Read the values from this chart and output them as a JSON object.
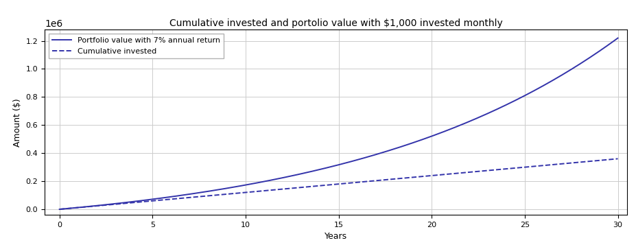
{
  "title": "Cumulative invested and portolio value with $1,000 invested monthly",
  "xlabel": "Years",
  "ylabel": "Amount ($)",
  "monthly_investment": 1000,
  "annual_return": 0.07,
  "years": 30,
  "line_color": "#3333aa",
  "portfolio_label": "Portfolio value with 7% annual return",
  "cumulative_label": "Cumulative invested",
  "xlim": [
    -0.8,
    30.5
  ],
  "ylim": [
    -40000.0,
    1280000.0
  ],
  "yticks": [
    0.0,
    0.2,
    0.4,
    0.6,
    0.8,
    1.0,
    1.2
  ],
  "xticks": [
    0,
    5,
    10,
    15,
    20,
    25,
    30
  ],
  "title_fontsize": 10,
  "label_fontsize": 9,
  "tick_fontsize": 8,
  "legend_fontsize": 8,
  "linewidth": 1.4
}
